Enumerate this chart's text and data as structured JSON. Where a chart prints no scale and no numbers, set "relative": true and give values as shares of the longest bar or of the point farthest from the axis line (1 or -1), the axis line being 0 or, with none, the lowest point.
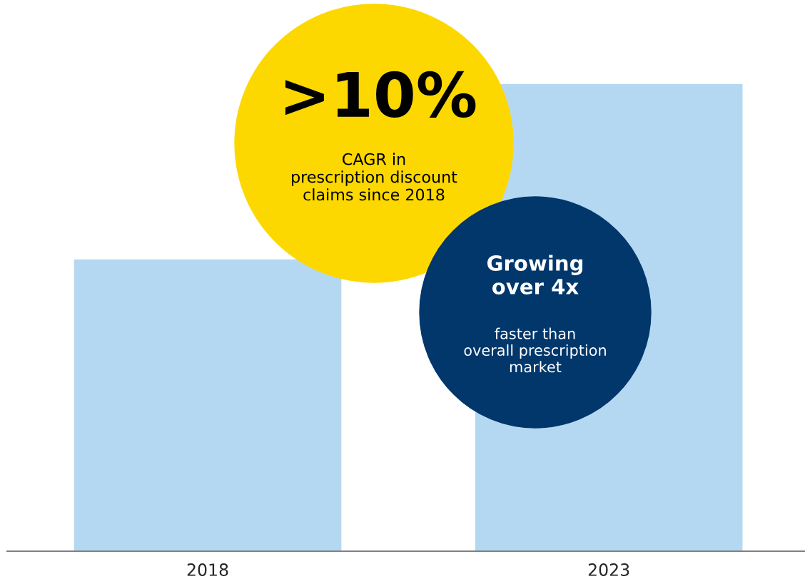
{
  "chart_data": {
    "type": "bar",
    "relative": true,
    "categories": [
      "2018",
      "2023"
    ],
    "values": [
      0.625,
      1
    ],
    "color": "#b5d8f2",
    "grid": false,
    "legend": false,
    "annotations": [
      ">10%",
      "CAGR in\nprescription discount\nclaims since 2018",
      "Growing\nover 4x",
      "faster than\noverall prescription\nmarket"
    ]
  }
}
